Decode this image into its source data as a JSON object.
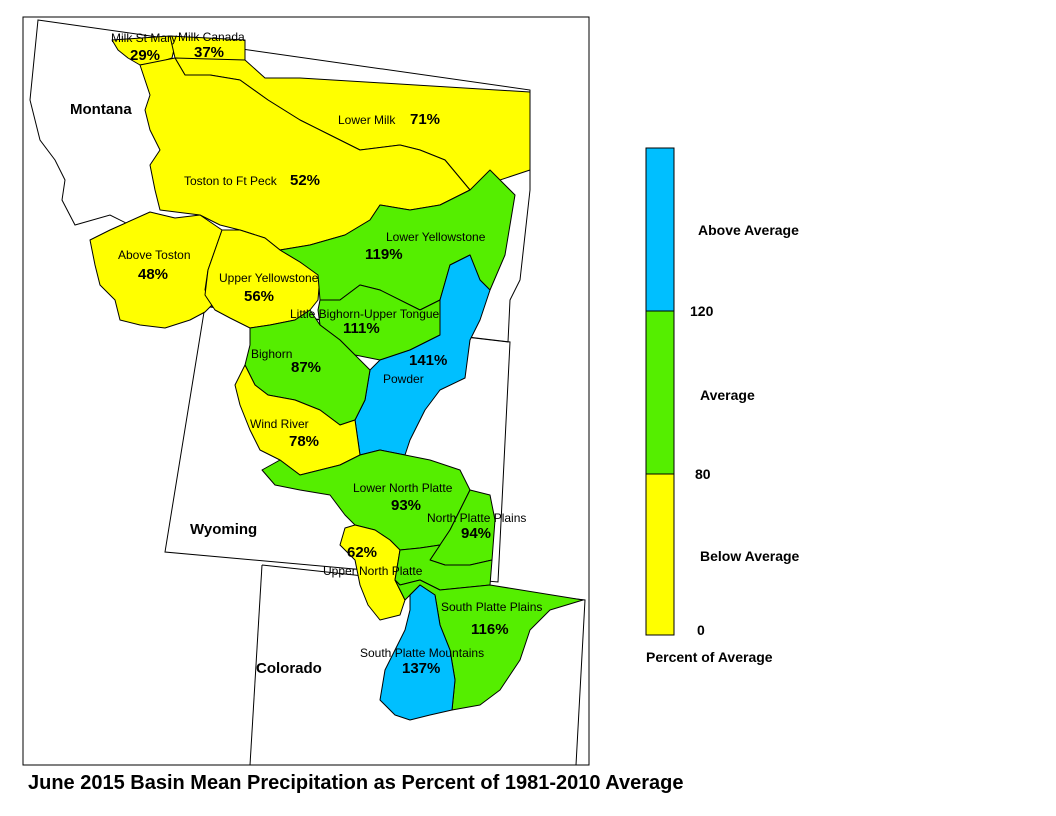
{
  "title": "June 2015 Basin Mean Precipitation as Percent of 1981-2010 Average",
  "colors": {
    "below": "#FFFF00",
    "average": "#55EE00",
    "above": "#00BFFF",
    "border": "#000000",
    "background": "#FFFFFF"
  },
  "states": {
    "montana": "Montana",
    "wyoming": "Wyoming",
    "colorado": "Colorado"
  },
  "basins": [
    {
      "key": "milk_st_mary",
      "name": "Milk St Mary",
      "percent": "29%",
      "category": "below"
    },
    {
      "key": "milk_canada",
      "name": "Milk Canada",
      "percent": "37%",
      "category": "below"
    },
    {
      "key": "lower_milk",
      "name": "Lower Milk",
      "percent": "71%",
      "category": "below"
    },
    {
      "key": "toston_ft_peck",
      "name": "Toston to Ft Peck",
      "percent": "52%",
      "category": "below"
    },
    {
      "key": "above_toston",
      "name": "Above Toston",
      "percent": "48%",
      "category": "below"
    },
    {
      "key": "upper_yellowstone",
      "name": "Upper Yellowstone",
      "percent": "56%",
      "category": "below"
    },
    {
      "key": "lower_yellowstone",
      "name": "Lower Yellowstone",
      "percent": "119%",
      "category": "average"
    },
    {
      "key": "little_bighorn",
      "name": "Little Bighorn-Upper Tongue",
      "percent": "111%",
      "category": "average"
    },
    {
      "key": "powder",
      "name": "Powder",
      "percent": "141%",
      "category": "above"
    },
    {
      "key": "bighorn",
      "name": "Bighorn",
      "percent": "87%",
      "category": "average"
    },
    {
      "key": "wind_river",
      "name": "Wind River",
      "percent": "78%",
      "category": "below"
    },
    {
      "key": "lower_north_platte",
      "name": "Lower North Platte",
      "percent": "93%",
      "category": "average"
    },
    {
      "key": "north_platte_plains",
      "name": "North Platte Plains",
      "percent": "94%",
      "category": "average"
    },
    {
      "key": "upper_north_platte",
      "name": "Upper North Platte",
      "percent": "62%",
      "category": "below"
    },
    {
      "key": "south_platte_plains",
      "name": "South Platte Plains",
      "percent": "116%",
      "category": "average"
    },
    {
      "key": "south_platte_mountains",
      "name": "South Platte Mountains",
      "percent": "137%",
      "category": "above"
    }
  ],
  "legend": {
    "categories": [
      {
        "label": "Above Average",
        "color": "#00BFFF"
      },
      {
        "label": "Average",
        "color": "#55EE00"
      },
      {
        "label": "Below Average",
        "color": "#FFFF00"
      }
    ],
    "breaks": [
      "120",
      "80",
      "0"
    ],
    "title": "Percent of Average"
  }
}
